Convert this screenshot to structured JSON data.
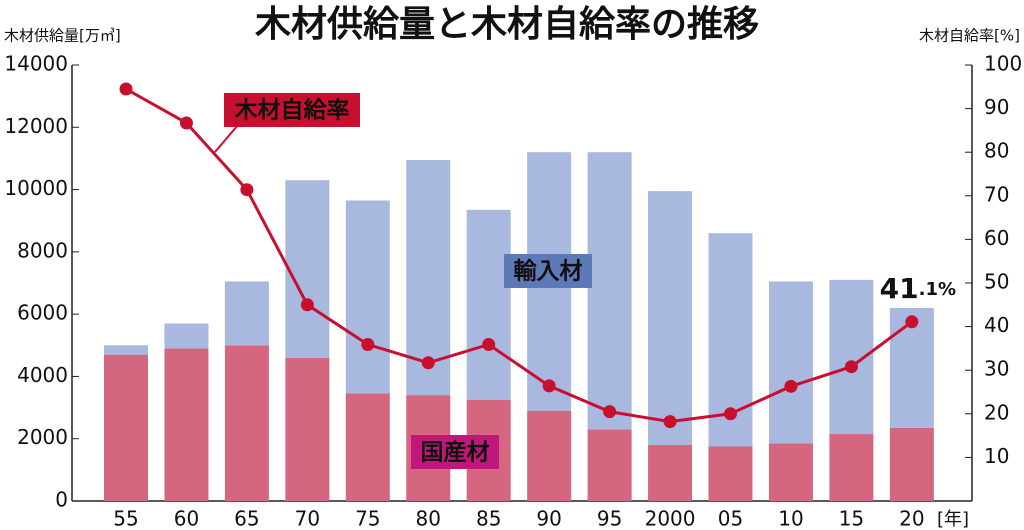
{
  "chart_data": {
    "type": "bar",
    "title": "木材供給量と木材自給率の推移",
    "y_label": "木材供給量[万㎥]",
    "y2_label": "木材自給率[%]",
    "x_unit": "[年]",
    "stacked": true,
    "categories": [
      "55",
      "60",
      "65",
      "70",
      "75",
      "80",
      "85",
      "90",
      "95",
      "2000",
      "05",
      "10",
      "15",
      "20"
    ],
    "series": [
      {
        "name": "国産材",
        "color": "#d4677f",
        "values": [
          4700,
          4900,
          5000,
          4600,
          3450,
          3400,
          3250,
          2900,
          2300,
          1800,
          1750,
          1850,
          2150,
          2350
        ]
      },
      {
        "name": "輸入材",
        "color": "#a9b8df",
        "values": [
          300,
          800,
          2050,
          5700,
          6200,
          7550,
          6100,
          8300,
          8900,
          8150,
          6850,
          5200,
          4950,
          3850
        ]
      },
      {
        "name": "木材自給率",
        "type": "line",
        "axis": "y2",
        "color": "#c8102e",
        "values": [
          94.5,
          86.7,
          71.4,
          45.0,
          35.9,
          31.7,
          35.9,
          26.4,
          20.5,
          18.2,
          20.0,
          26.3,
          30.8,
          41.1
        ],
        "value_labels": [
          null,
          null,
          null,
          null,
          null,
          null,
          null,
          null,
          null,
          null,
          null,
          null,
          null,
          "41.1%"
        ]
      }
    ],
    "ylim": [
      0,
      14000
    ],
    "yticks": [
      0,
      2000,
      4000,
      6000,
      8000,
      10000,
      12000,
      14000
    ],
    "y2lim": [
      0,
      100
    ],
    "y2ticks": [
      10,
      20,
      30,
      40,
      50,
      60,
      70,
      80,
      90,
      100
    ]
  }
}
